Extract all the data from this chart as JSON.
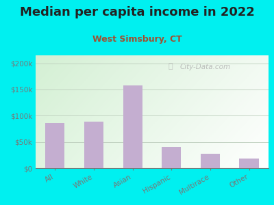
{
  "title": "Median per capita income in 2022",
  "subtitle": "West Simsbury, CT",
  "categories": [
    "All",
    "White",
    "Asian",
    "Hispanic",
    "Multirace",
    "Other"
  ],
  "values": [
    86000,
    89000,
    158000,
    40000,
    28000,
    18000
  ],
  "bar_color": "#c4aed0",
  "background_outer": "#00f0f0",
  "title_color": "#222222",
  "subtitle_color": "#a05030",
  "tick_color": "#777777",
  "grid_color": "#bbccbb",
  "ylabel_ticks": [
    0,
    50000,
    100000,
    150000,
    200000
  ],
  "ylabel_labels": [
    "$0",
    "$50k",
    "$100k",
    "$150k",
    "$200k"
  ],
  "ylim": [
    0,
    215000
  ],
  "watermark": "City-Data.com",
  "title_fontsize": 13,
  "subtitle_fontsize": 9,
  "tick_fontsize": 7.5
}
